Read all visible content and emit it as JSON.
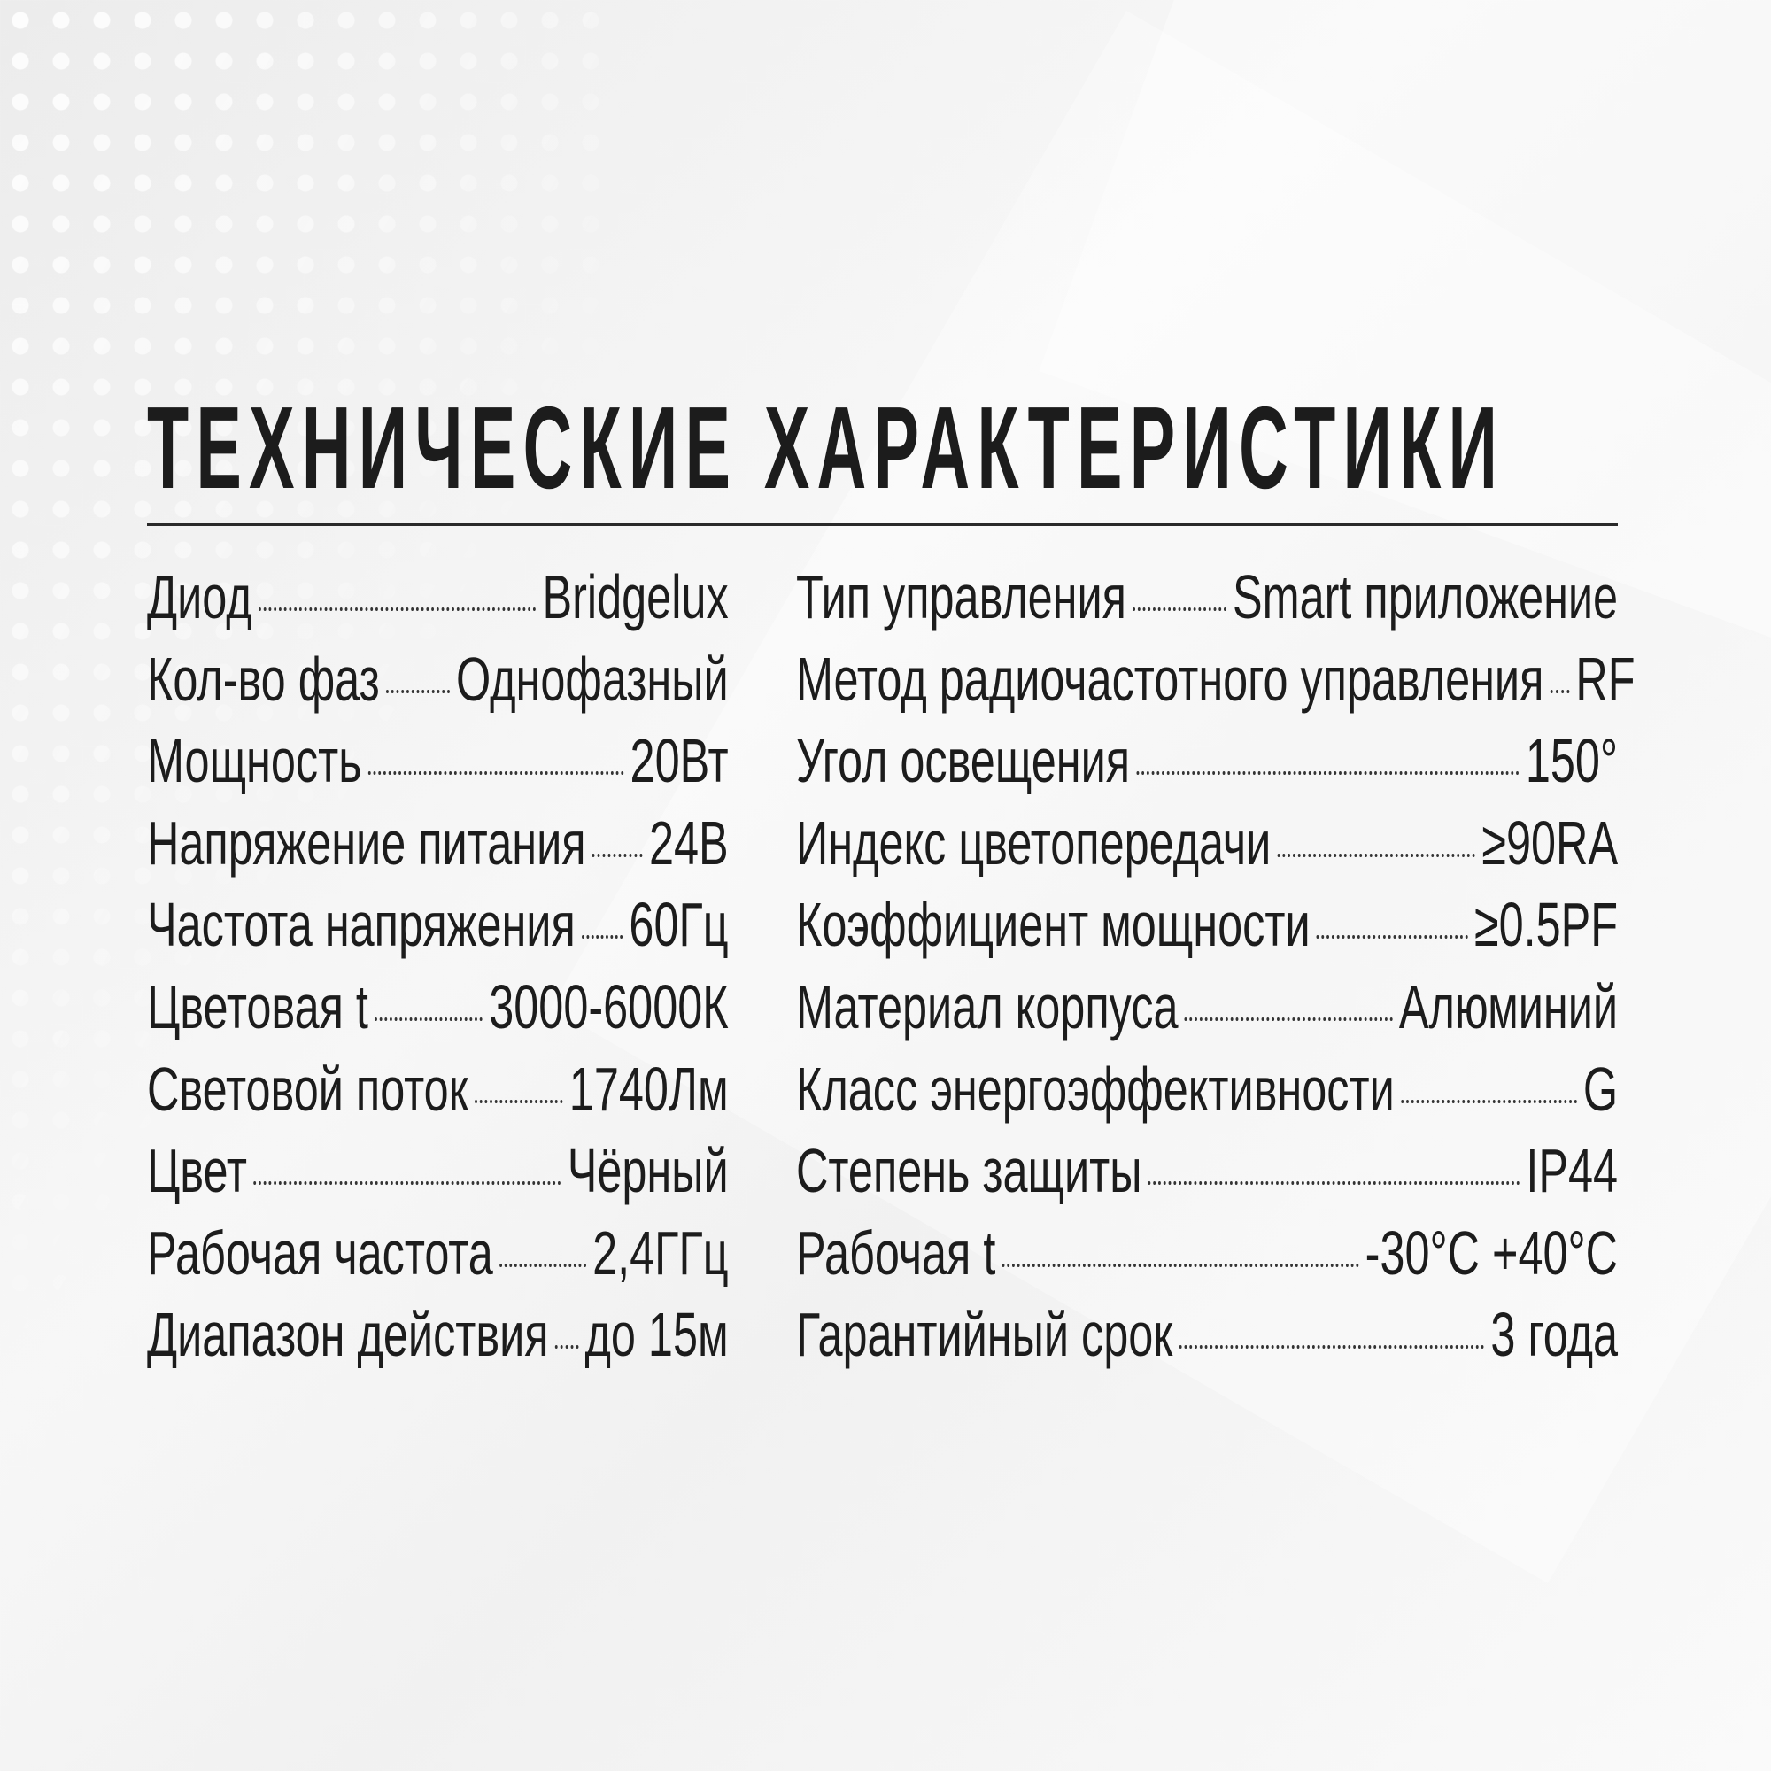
{
  "title": "ТЕХНИЧЕСКИЕ ХАРАКТЕРИСТИКИ",
  "left_specs": [
    {
      "label": "Диод",
      "value": "Bridgelux"
    },
    {
      "label": "Кол-во фаз",
      "value": "Однофазный"
    },
    {
      "label": "Мощность",
      "value": "20Вт"
    },
    {
      "label": "Напряжение питания",
      "value": "24В"
    },
    {
      "label": "Частота напряжения",
      "value": "60Гц"
    },
    {
      "label": "Цветовая t",
      "value": "3000-6000К"
    },
    {
      "label": "Световой поток",
      "value": "1740Лм"
    },
    {
      "label": "Цвет",
      "value": "Чёрный"
    },
    {
      "label": "Рабочая частота",
      "value": "2,4ГГц"
    },
    {
      "label": "Диапазон действия",
      "value": "до 15м"
    }
  ],
  "right_specs": [
    {
      "label": "Тип управления",
      "value": "Smart приложение"
    },
    {
      "label": "Метод радиочастотного управления",
      "value": "RF"
    },
    {
      "label": "Угол освещения",
      "value": "150°"
    },
    {
      "label": "Индекс цветопередачи",
      "value": "≥90RA"
    },
    {
      "label": "Коэффициент мощности",
      "value": "≥0.5PF"
    },
    {
      "label": "Материал корпуса",
      "value": "Алюминий"
    },
    {
      "label": "Класс энергоэффективности",
      "value": "G"
    },
    {
      "label": "Степень защиты",
      "value": "IP44"
    },
    {
      "label": "Рабочая t",
      "value": "-30°C +40°C"
    },
    {
      "label": "Гарантийный срок",
      "value": "3 года"
    }
  ]
}
